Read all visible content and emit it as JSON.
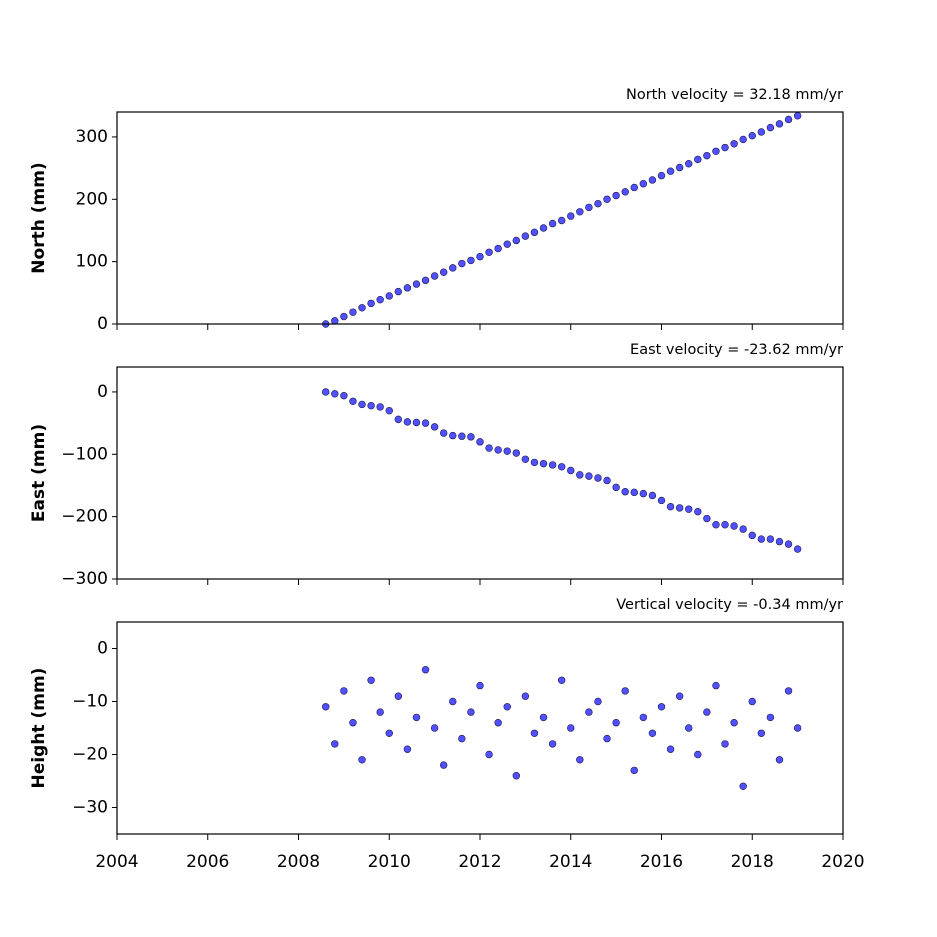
{
  "chart_data": [
    {
      "type": "scatter",
      "title": "North velocity = 32.18 mm/yr",
      "y_label": "North (mm)",
      "color": "#5050ff",
      "edgecolor": "#1a1a50",
      "x": [
        2008.6,
        2008.8,
        2009.0,
        2009.2,
        2009.4,
        2009.6,
        2009.8,
        2010.0,
        2010.2,
        2010.4,
        2010.6,
        2010.8,
        2011.0,
        2011.2,
        2011.4,
        2011.6,
        2011.8,
        2012.0,
        2012.2,
        2012.4,
        2012.6,
        2012.8,
        2013.0,
        2013.2,
        2013.4,
        2013.6,
        2013.8,
        2014.0,
        2014.2,
        2014.4,
        2014.6,
        2014.8,
        2015.0,
        2015.2,
        2015.4,
        2015.6,
        2015.8,
        2016.0,
        2016.2,
        2016.4,
        2016.6,
        2016.8,
        2017.0,
        2017.2,
        2017.4,
        2017.6,
        2017.8,
        2018.0,
        2018.2,
        2018.4,
        2018.6,
        2018.8,
        2019.0
      ],
      "values": [
        0,
        5,
        12,
        19,
        26,
        33,
        39,
        45,
        52,
        58,
        64,
        70,
        77,
        83,
        90,
        97,
        102,
        108,
        115,
        121,
        128,
        134,
        141,
        147,
        154,
        161,
        166,
        173,
        180,
        187,
        193,
        200,
        206,
        212,
        219,
        225,
        231,
        238,
        245,
        251,
        257,
        264,
        270,
        277,
        283,
        289,
        296,
        302,
        308,
        315,
        321,
        328,
        334
      ],
      "xlim": [
        2004,
        2020
      ],
      "xticks": [
        2004,
        2006,
        2008,
        2010,
        2012,
        2014,
        2016,
        2018,
        2020
      ],
      "xticklabels": false,
      "ylim": [
        0,
        340
      ],
      "yticks": [
        0,
        100,
        200,
        300
      ]
    },
    {
      "type": "scatter",
      "title": "East velocity = -23.62 mm/yr",
      "y_label": "East (mm)",
      "color": "#5050ff",
      "edgecolor": "#1a1a50",
      "x": [
        2008.6,
        2008.8,
        2009.0,
        2009.2,
        2009.4,
        2009.6,
        2009.8,
        2010.0,
        2010.2,
        2010.4,
        2010.6,
        2010.8,
        2011.0,
        2011.2,
        2011.4,
        2011.6,
        2011.8,
        2012.0,
        2012.2,
        2012.4,
        2012.6,
        2012.8,
        2013.0,
        2013.2,
        2013.4,
        2013.6,
        2013.8,
        2014.0,
        2014.2,
        2014.4,
        2014.6,
        2014.8,
        2015.0,
        2015.2,
        2015.4,
        2015.6,
        2015.8,
        2016.0,
        2016.2,
        2016.4,
        2016.6,
        2016.8,
        2017.0,
        2017.2,
        2017.4,
        2017.6,
        2017.8,
        2018.0,
        2018.2,
        2018.4,
        2018.6,
        2018.8,
        2019.0
      ],
      "values": [
        0,
        -3,
        -6,
        -15,
        -20,
        -22,
        -24,
        -30,
        -44,
        -48,
        -49,
        -50,
        -56,
        -66,
        -70,
        -71,
        -72,
        -80,
        -90,
        -93,
        -95,
        -98,
        -108,
        -113,
        -115,
        -117,
        -120,
        -126,
        -133,
        -135,
        -138,
        -142,
        -153,
        -160,
        -161,
        -163,
        -166,
        -174,
        -184,
        -186,
        -188,
        -192,
        -203,
        -213,
        -213,
        -215,
        -220,
        -230,
        -236,
        -236,
        -240,
        -244,
        -252
      ],
      "xlim": [
        2004,
        2020
      ],
      "xticks": [
        2004,
        2006,
        2008,
        2010,
        2012,
        2014,
        2016,
        2018,
        2020
      ],
      "xticklabels": false,
      "ylim": [
        -300,
        40
      ],
      "yticks": [
        {
          "value": -300,
          "label": "−300"
        },
        {
          "value": -200,
          "label": "−200"
        },
        {
          "value": -100,
          "label": "−100"
        },
        0
      ]
    },
    {
      "type": "scatter",
      "title": "Vertical velocity = -0.34 mm/yr",
      "y_label": "Height (mm)",
      "color": "#5050ff",
      "edgecolor": "#1a1a50",
      "x": [
        2008.6,
        2008.8,
        2009.0,
        2009.2,
        2009.4,
        2009.6,
        2009.8,
        2010.0,
        2010.2,
        2010.4,
        2010.6,
        2010.8,
        2011.0,
        2011.2,
        2011.4,
        2011.6,
        2011.8,
        2012.0,
        2012.2,
        2012.4,
        2012.6,
        2012.8,
        2013.0,
        2013.2,
        2013.4,
        2013.6,
        2013.8,
        2014.0,
        2014.2,
        2014.4,
        2014.6,
        2014.8,
        2015.0,
        2015.2,
        2015.4,
        2015.6,
        2015.8,
        2016.0,
        2016.2,
        2016.4,
        2016.6,
        2016.8,
        2017.0,
        2017.2,
        2017.4,
        2017.6,
        2017.8,
        2018.0,
        2018.2,
        2018.4,
        2018.6,
        2018.8,
        2019.0
      ],
      "values": [
        -11,
        -18,
        -8,
        -14,
        -21,
        -6,
        -12,
        -16,
        -9,
        -19,
        -13,
        -4,
        -15,
        -22,
        -10,
        -17,
        -12,
        -7,
        -20,
        -14,
        -11,
        -24,
        -9,
        -16,
        -13,
        -18,
        -6,
        -15,
        -21,
        -12,
        -10,
        -17,
        -14,
        -8,
        -23,
        -13,
        -16,
        -11,
        -19,
        -9,
        -15,
        -20,
        -12,
        -7,
        -18,
        -14,
        -26,
        -10,
        -16,
        -13,
        -21,
        -8,
        -15
      ],
      "xlim": [
        2004,
        2020
      ],
      "xticks": [
        2004,
        2006,
        2008,
        2010,
        2012,
        2014,
        2016,
        2018,
        2020
      ],
      "xticklabels": true,
      "ylim": [
        -35,
        5
      ],
      "yticks": [
        {
          "value": -30,
          "label": "−30"
        },
        {
          "value": -20,
          "label": "−20"
        },
        {
          "value": -10,
          "label": "−10"
        },
        0
      ]
    }
  ]
}
